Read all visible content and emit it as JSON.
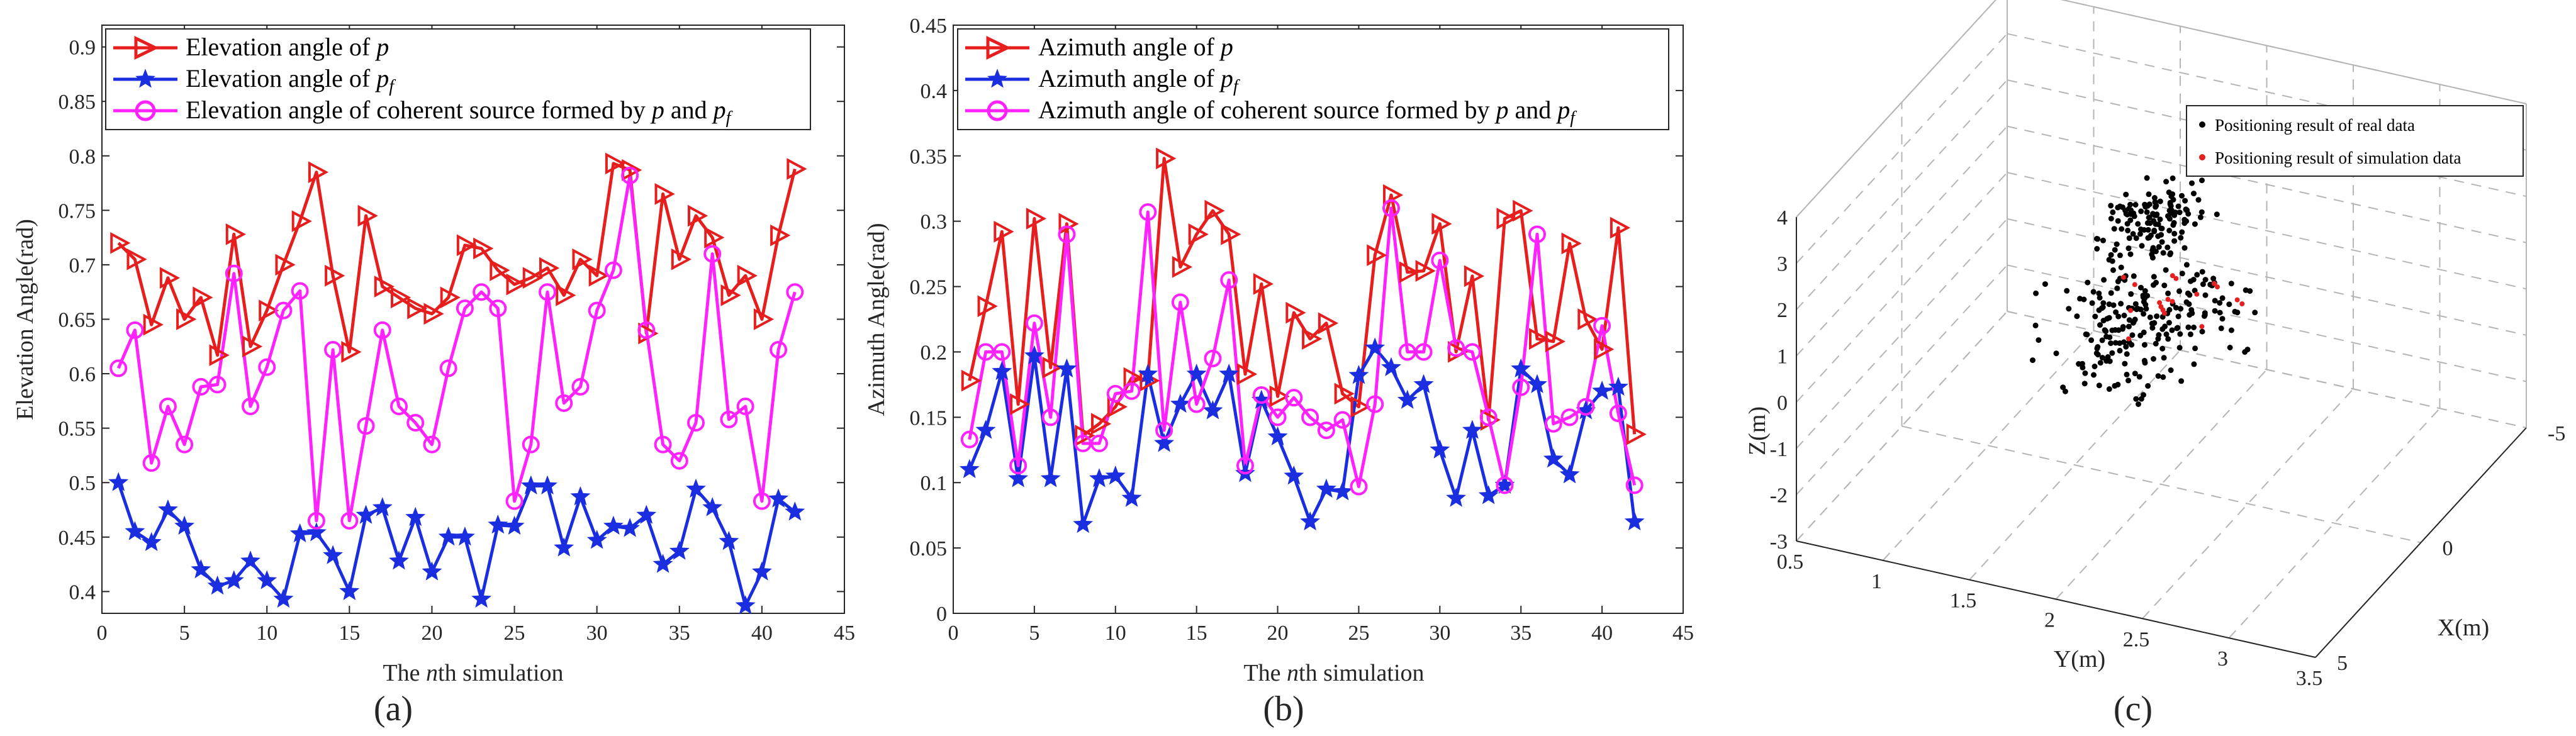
{
  "chart_data": [
    {
      "type": "line",
      "panel_label": "(a)",
      "xlabel": "The nth simulation",
      "ylabel": "Elevation Angle(rad)",
      "xlim": [
        0,
        45
      ],
      "ylim": [
        0.38,
        0.92
      ],
      "xticks": [
        "0",
        "5",
        "10",
        "15",
        "20",
        "25",
        "30",
        "35",
        "40",
        "45"
      ],
      "yticks": [
        "0.4",
        "0.45",
        "0.5",
        "0.55",
        "0.6",
        "0.65",
        "0.7",
        "0.75",
        "0.8",
        "0.85",
        "0.9"
      ],
      "x": [
        1,
        2,
        3,
        4,
        5,
        6,
        7,
        8,
        9,
        10,
        11,
        12,
        13,
        14,
        15,
        16,
        17,
        18,
        19,
        20,
        21,
        22,
        23,
        24,
        25,
        26,
        27,
        28,
        29,
        30,
        31,
        32,
        33,
        34,
        35,
        36,
        37,
        38,
        39,
        40,
        41,
        42
      ],
      "legend_position": "top-left",
      "series": [
        {
          "name": "Elevation angle of p",
          "color": "#e61e1e",
          "marker": "triangle-right",
          "values": [
            0.72,
            0.705,
            0.645,
            0.688,
            0.65,
            0.67,
            0.617,
            0.728,
            0.625,
            0.658,
            0.7,
            0.74,
            0.785,
            0.69,
            0.62,
            0.745,
            0.68,
            0.67,
            0.66,
            0.655,
            0.67,
            0.718,
            0.715,
            0.695,
            0.682,
            0.688,
            0.697,
            0.672,
            0.705,
            0.69,
            0.793,
            0.787,
            0.637,
            0.765,
            0.705,
            0.745,
            0.725,
            0.672,
            0.69,
            0.65,
            0.727,
            0.788
          ]
        },
        {
          "name": "Elevation angle of pf",
          "color": "#1a2ee0",
          "marker": "star",
          "values": [
            0.5,
            0.455,
            0.445,
            0.475,
            0.46,
            0.42,
            0.405,
            0.41,
            0.428,
            0.41,
            0.393,
            0.453,
            0.454,
            0.433,
            0.4,
            0.47,
            0.477,
            0.428,
            0.468,
            0.418,
            0.45,
            0.45,
            0.393,
            0.461,
            0.46,
            0.497,
            0.497,
            0.44,
            0.487,
            0.447,
            0.46,
            0.458,
            0.47,
            0.425,
            0.437,
            0.494,
            0.477,
            0.446,
            0.387,
            0.418,
            0.485,
            0.473
          ]
        },
        {
          "name": "Elevation angle of coherent source formed by p and pf",
          "color": "#ff22ff",
          "marker": "circle",
          "values": [
            0.605,
            0.64,
            0.518,
            0.57,
            0.535,
            0.588,
            0.59,
            0.692,
            0.57,
            0.606,
            0.658,
            0.676,
            0.465,
            0.622,
            0.465,
            0.552,
            0.64,
            0.57,
            0.555,
            0.535,
            0.605,
            0.66,
            0.675,
            0.66,
            0.483,
            0.535,
            0.675,
            0.573,
            0.588,
            0.658,
            0.695,
            0.782,
            0.64,
            0.535,
            0.52,
            0.555,
            0.71,
            0.558,
            0.57,
            0.483,
            0.622,
            0.675
          ]
        }
      ]
    },
    {
      "type": "line",
      "panel_label": "(b)",
      "xlabel": "The nth simulation",
      "ylabel": "Azimuth  Angle(rad)",
      "xlim": [
        0,
        45
      ],
      "ylim": [
        0,
        0.45
      ],
      "xticks": [
        "0",
        "5",
        "10",
        "15",
        "20",
        "25",
        "30",
        "35",
        "40",
        "45"
      ],
      "yticks": [
        "0",
        "0.05",
        "0.1",
        "0.15",
        "0.2",
        "0.25",
        "0.3",
        "0.35",
        "0.4",
        "0.45"
      ],
      "x": [
        1,
        2,
        3,
        4,
        5,
        6,
        7,
        8,
        9,
        10,
        11,
        12,
        13,
        14,
        15,
        16,
        17,
        18,
        19,
        20,
        21,
        22,
        23,
        24,
        25,
        26,
        27,
        28,
        29,
        30,
        31,
        32,
        33,
        34,
        35,
        36,
        37,
        38,
        39,
        40,
        41,
        42
      ],
      "legend_position": "top-left",
      "series": [
        {
          "name": "Azimuth angle of p",
          "color": "#e61e1e",
          "marker": "triangle-right",
          "values": [
            0.178,
            0.235,
            0.292,
            0.16,
            0.302,
            0.188,
            0.298,
            0.136,
            0.145,
            0.158,
            0.18,
            0.178,
            0.348,
            0.265,
            0.29,
            0.308,
            0.29,
            0.183,
            0.252,
            0.166,
            0.23,
            0.21,
            0.222,
            0.168,
            0.158,
            0.274,
            0.32,
            0.261,
            0.262,
            0.298,
            0.2,
            0.258,
            0.148,
            0.302,
            0.308,
            0.21,
            0.208,
            0.283,
            0.225,
            0.202,
            0.295,
            0.137
          ]
        },
        {
          "name": "Azimuth angle of pf",
          "color": "#1a2ee0",
          "marker": "star",
          "values": [
            0.11,
            0.14,
            0.185,
            0.103,
            0.197,
            0.103,
            0.187,
            0.068,
            0.103,
            0.105,
            0.088,
            0.183,
            0.13,
            0.16,
            0.183,
            0.155,
            0.183,
            0.107,
            0.163,
            0.135,
            0.105,
            0.07,
            0.095,
            0.093,
            0.182,
            0.203,
            0.188,
            0.163,
            0.175,
            0.125,
            0.088,
            0.14,
            0.09,
            0.098,
            0.187,
            0.175,
            0.118,
            0.106,
            0.155,
            0.17,
            0.173,
            0.07
          ]
        },
        {
          "name": "Azimuth angle of coherent source formed by p and pf",
          "color": "#ff22ff",
          "marker": "circle",
          "values": [
            0.133,
            0.2,
            0.2,
            0.113,
            0.222,
            0.15,
            0.29,
            0.13,
            0.13,
            0.168,
            0.17,
            0.307,
            0.14,
            0.238,
            0.16,
            0.195,
            0.255,
            0.113,
            0.167,
            0.15,
            0.165,
            0.15,
            0.14,
            0.148,
            0.097,
            0.16,
            0.31,
            0.2,
            0.2,
            0.27,
            0.203,
            0.2,
            0.15,
            0.098,
            0.173,
            0.29,
            0.145,
            0.15,
            0.158,
            0.22,
            0.153,
            0.098
          ]
        }
      ]
    },
    {
      "type": "scatter3d",
      "panel_label": "(c)",
      "xlabel": "Y(m)",
      "ylabel": "X(m)",
      "zlabel": "Z(m)",
      "y_ticks": [
        "0.5",
        "1",
        "1.5",
        "2",
        "2.5",
        "3",
        "3.5"
      ],
      "x_ticks": [
        "5",
        "0",
        "-5"
      ],
      "z_ticks": [
        "-3",
        "-2",
        "-1",
        "0",
        "1",
        "2",
        "3",
        "4"
      ],
      "y_range": [
        0.5,
        3.5
      ],
      "x_range": [
        5,
        -5
      ],
      "z_range": [
        -3,
        4
      ],
      "legend_position": "top-right",
      "series": [
        {
          "name": "Positioning result of real data",
          "color": "#000000",
          "clusters": [
            {
              "y": 2.0,
              "x": 0.5,
              "z": 1.0,
              "spread": [
                0.5,
                2.0,
                0.12
              ],
              "count": 180
            },
            {
              "y": 2.0,
              "x": 0.5,
              "z": 3.0,
              "spread": [
                0.25,
                1.5,
                0.3
              ],
              "count": 130
            },
            {
              "y": 1.9,
              "x": 1.0,
              "z": -0.2,
              "spread": [
                0.3,
                1.0,
                0.15
              ],
              "count": 35
            }
          ]
        },
        {
          "name": "Positioning result of simulation data",
          "color": "#e62020",
          "clusters": [
            {
              "y": 2.1,
              "x": 0.0,
              "z": 1.0,
              "spread": [
                0.4,
                1.5,
                0.05
              ],
              "count": 18
            }
          ]
        }
      ]
    }
  ]
}
